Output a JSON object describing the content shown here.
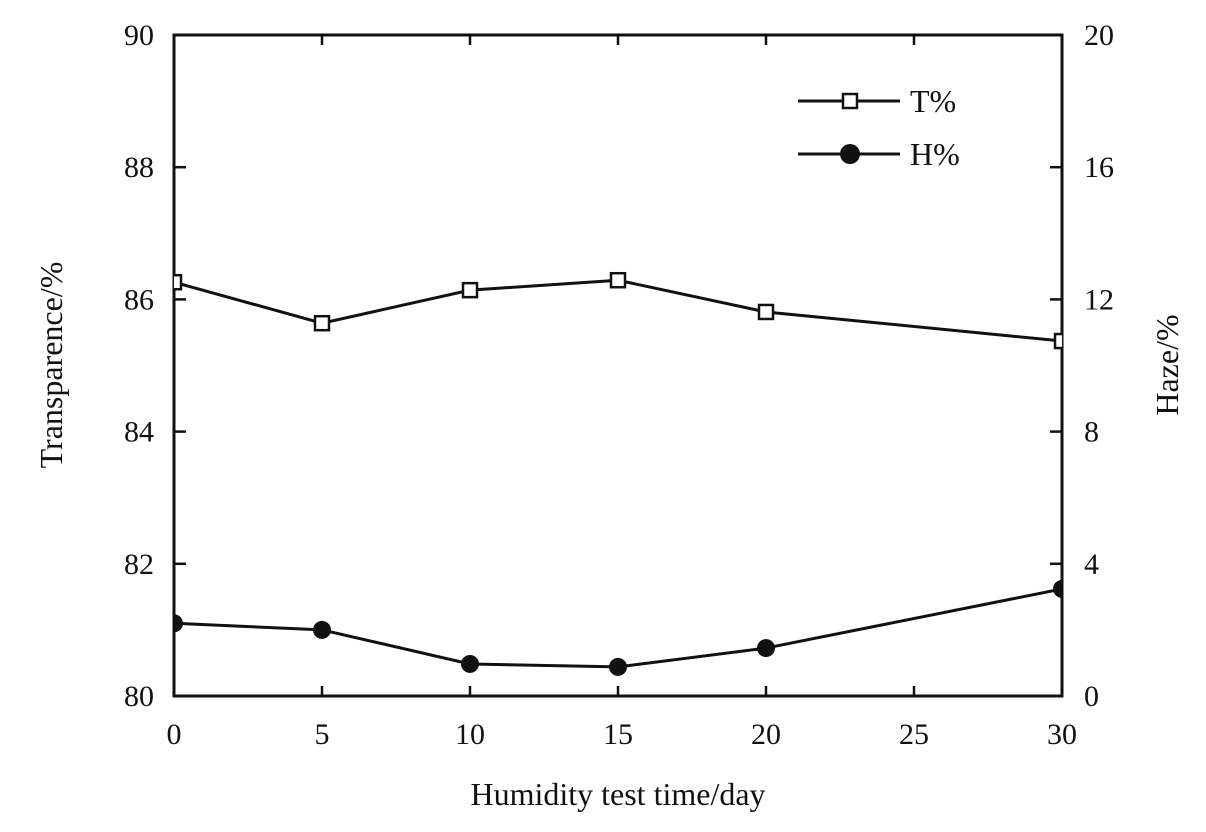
{
  "chart_data": {
    "type": "line",
    "title": "",
    "xlabel": "Humidity test time/day",
    "ylabel": "Transparence/%",
    "y2label": "Haze/%",
    "xlim": [
      0,
      30
    ],
    "ylim": [
      80,
      90
    ],
    "y2lim": [
      0,
      20
    ],
    "xticks": [
      0,
      5,
      10,
      15,
      20,
      25,
      30
    ],
    "yticks": [
      80,
      82,
      84,
      86,
      88,
      90
    ],
    "y2ticks": [
      0,
      4,
      8,
      12,
      16,
      20
    ],
    "grid": false,
    "legend_position": "top-right",
    "series": [
      {
        "name": "T%",
        "axis": "left",
        "marker": "open-square",
        "x": [
          0,
          5,
          10,
          15,
          20,
          30
        ],
        "values": [
          86.26,
          85.64,
          86.14,
          86.29,
          85.81,
          85.37
        ]
      },
      {
        "name": "H%",
        "axis": "right",
        "marker": "filled-circle",
        "x": [
          0,
          5,
          10,
          15,
          20,
          30
        ],
        "values": [
          2.2,
          2.0,
          0.97,
          0.88,
          1.45,
          3.24
        ]
      }
    ]
  }
}
